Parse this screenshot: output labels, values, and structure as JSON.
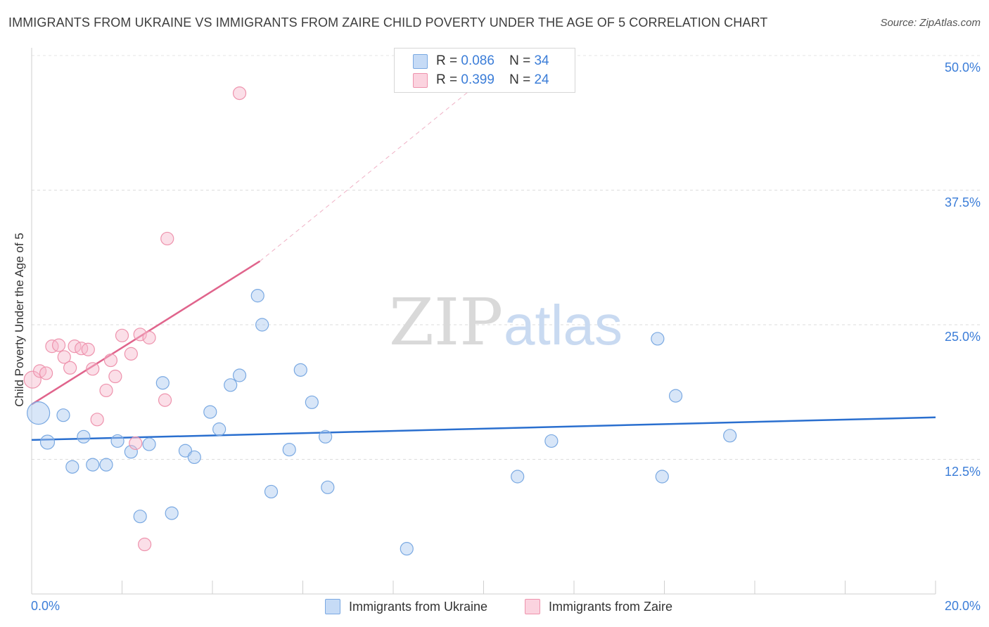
{
  "header": {
    "title": "IMMIGRANTS FROM UKRAINE VS IMMIGRANTS FROM ZAIRE CHILD POVERTY UNDER THE AGE OF 5 CORRELATION CHART",
    "source": "Source: ZipAtlas.com"
  },
  "watermark": {
    "zip": "ZIP",
    "atlas": "atlas"
  },
  "legend": {
    "rows": [
      {
        "r_label": "R =",
        "r_value": "0.086",
        "n_label": "N =",
        "n_value": "34",
        "color": "#a9c8f0"
      },
      {
        "r_label": "R =",
        "r_value": "0.399",
        "n_label": "N =",
        "n_value": "24",
        "color": "#f6b9cb"
      }
    ]
  },
  "chart_data": {
    "type": "scatter",
    "title": "IMMIGRANTS FROM UKRAINE VS IMMIGRANTS FROM ZAIRE CHILD POVERTY UNDER THE AGE OF 5 CORRELATION CHART",
    "xlabel": "",
    "ylabel": "Child Poverty Under the Age of 5",
    "xlim": [
      0,
      20
    ],
    "ylim": [
      0,
      50
    ],
    "x_tick_labels": [
      "0.0%",
      "20.0%"
    ],
    "y_ticks": [
      12.5,
      25.0,
      37.5,
      50.0
    ],
    "y_tick_labels": [
      "12.5%",
      "25.0%",
      "37.5%",
      "50.0%"
    ],
    "grid": true,
    "series": [
      {
        "name": "Immigrants from Ukraine",
        "color": "#a9c8f0",
        "stroke": "#7aa9e2",
        "trend_color": "#2a6fcf",
        "trend": {
          "x0": 0,
          "y0": 14.3,
          "x1": 20,
          "y1": 16.4
        },
        "points": [
          [
            0.15,
            16.8,
            16
          ],
          [
            0.35,
            14.1,
            10
          ],
          [
            0.7,
            16.6,
            9
          ],
          [
            0.9,
            11.8,
            9
          ],
          [
            1.15,
            14.6,
            9
          ],
          [
            1.35,
            12.0,
            9
          ],
          [
            1.65,
            12.0,
            9
          ],
          [
            1.9,
            14.2,
            9
          ],
          [
            2.2,
            13.2,
            9
          ],
          [
            2.4,
            7.2,
            9
          ],
          [
            2.6,
            13.9,
            9
          ],
          [
            2.9,
            19.6,
            9
          ],
          [
            3.1,
            7.5,
            9
          ],
          [
            3.4,
            13.3,
            9
          ],
          [
            3.6,
            12.7,
            9
          ],
          [
            3.95,
            16.9,
            9
          ],
          [
            4.15,
            15.3,
            9
          ],
          [
            4.4,
            19.4,
            9
          ],
          [
            4.6,
            20.3,
            9
          ],
          [
            5.0,
            27.7,
            9
          ],
          [
            5.1,
            25.0,
            9
          ],
          [
            5.3,
            9.5,
            9
          ],
          [
            5.7,
            13.4,
            9
          ],
          [
            5.95,
            20.8,
            9
          ],
          [
            6.2,
            17.8,
            9
          ],
          [
            6.5,
            14.6,
            9
          ],
          [
            6.55,
            9.9,
            9
          ],
          [
            8.3,
            4.2,
            9
          ],
          [
            10.75,
            10.9,
            9
          ],
          [
            11.5,
            14.2,
            9
          ],
          [
            13.85,
            23.7,
            9
          ],
          [
            13.95,
            10.9,
            9
          ],
          [
            14.25,
            18.4,
            9
          ],
          [
            15.45,
            14.7,
            9
          ]
        ]
      },
      {
        "name": "Immigrants from Zaire",
        "color": "#f6b9cb",
        "stroke": "#ee93ad",
        "trend_color": "#e0648c",
        "trend": {
          "x0": 0,
          "y0": 17.6,
          "x1": 5.05,
          "y1": 30.9
        },
        "trend_ext": {
          "x0": 5.05,
          "y0": 30.9,
          "x1": 10.5,
          "y1": 49.5
        },
        "points": [
          [
            0.02,
            19.9,
            12
          ],
          [
            0.18,
            20.7,
            9
          ],
          [
            0.32,
            20.5,
            9
          ],
          [
            0.45,
            23.0,
            9
          ],
          [
            0.6,
            23.1,
            9
          ],
          [
            0.72,
            22.0,
            9
          ],
          [
            0.85,
            21.0,
            9
          ],
          [
            0.95,
            23.0,
            9
          ],
          [
            1.1,
            22.8,
            9
          ],
          [
            1.25,
            22.7,
            9
          ],
          [
            1.35,
            20.9,
            9
          ],
          [
            1.45,
            16.2,
            9
          ],
          [
            1.65,
            18.9,
            9
          ],
          [
            1.75,
            21.7,
            9
          ],
          [
            1.85,
            20.2,
            9
          ],
          [
            2.0,
            24.0,
            9
          ],
          [
            2.2,
            22.3,
            9
          ],
          [
            2.3,
            14.0,
            9
          ],
          [
            2.4,
            24.1,
            9
          ],
          [
            2.5,
            4.6,
            9
          ],
          [
            2.6,
            23.8,
            9
          ],
          [
            2.95,
            18.0,
            9
          ],
          [
            3.0,
            33.0,
            9
          ],
          [
            4.6,
            46.5,
            9
          ]
        ]
      }
    ]
  }
}
